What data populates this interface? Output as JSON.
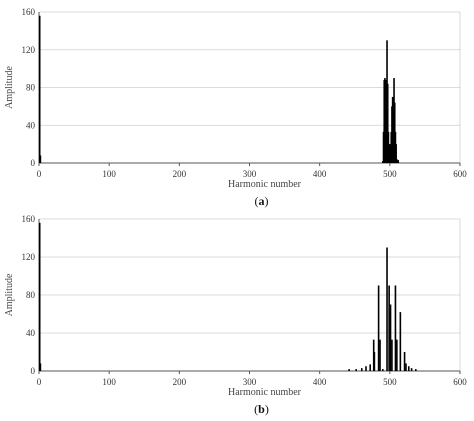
{
  "chart_data": [
    {
      "type": "bar",
      "panel_label": "b",
      "caption_prefix": "(",
      "caption_suffix": ")",
      "xlabel": "Harmonic number",
      "ylabel": "Amplitude",
      "xlim": [
        0,
        600
      ],
      "ylim": [
        0,
        160
      ],
      "xticks": [
        0,
        100,
        200,
        300,
        400,
        500,
        600
      ],
      "yticks": [
        0,
        40,
        80,
        120,
        160
      ],
      "grid": "horizontal",
      "bar_color": "#000000",
      "points": [
        {
          "x": 1,
          "y": 156
        },
        {
          "x": 2,
          "y": 8
        },
        {
          "x": 490,
          "y": 2
        },
        {
          "x": 491,
          "y": 33
        },
        {
          "x": 492,
          "y": 88
        },
        {
          "x": 493,
          "y": 90
        },
        {
          "x": 494,
          "y": 33
        },
        {
          "x": 495,
          "y": 88
        },
        {
          "x": 496,
          "y": 130
        },
        {
          "x": 497,
          "y": 84
        },
        {
          "x": 498,
          "y": 33
        },
        {
          "x": 499,
          "y": 20
        },
        {
          "x": 500,
          "y": 20
        },
        {
          "x": 501,
          "y": 8
        },
        {
          "x": 502,
          "y": 33
        },
        {
          "x": 503,
          "y": 60
        },
        {
          "x": 504,
          "y": 70
        },
        {
          "x": 505,
          "y": 55
        },
        {
          "x": 506,
          "y": 90
        },
        {
          "x": 507,
          "y": 64
        },
        {
          "x": 508,
          "y": 33
        },
        {
          "x": 509,
          "y": 20
        },
        {
          "x": 510,
          "y": 4
        },
        {
          "x": 512,
          "y": 3
        }
      ]
    },
    {
      "type": "bar",
      "panel_label": "b",
      "caption_prefix": "(",
      "caption_suffix": ")",
      "xlabel": "Harmonic number",
      "ylabel": "Amplitude",
      "xlim": [
        0,
        600
      ],
      "ylim": [
        0,
        160
      ],
      "xticks": [
        0,
        100,
        200,
        300,
        400,
        500,
        600
      ],
      "yticks": [
        0,
        40,
        80,
        120,
        160
      ],
      "grid": "horizontal",
      "bar_color": "#000000",
      "points": [
        {
          "x": 1,
          "y": 156
        },
        {
          "x": 2,
          "y": 8
        },
        {
          "x": 442,
          "y": 2
        },
        {
          "x": 452,
          "y": 2
        },
        {
          "x": 460,
          "y": 3
        },
        {
          "x": 466,
          "y": 5
        },
        {
          "x": 472,
          "y": 7
        },
        {
          "x": 477,
          "y": 33
        },
        {
          "x": 478,
          "y": 20
        },
        {
          "x": 484,
          "y": 90
        },
        {
          "x": 486,
          "y": 33
        },
        {
          "x": 490,
          "y": 2
        },
        {
          "x": 496,
          "y": 130
        },
        {
          "x": 499,
          "y": 90
        },
        {
          "x": 501,
          "y": 70
        },
        {
          "x": 503,
          "y": 33
        },
        {
          "x": 508,
          "y": 90
        },
        {
          "x": 510,
          "y": 33
        },
        {
          "x": 515,
          "y": 62
        },
        {
          "x": 521,
          "y": 20
        },
        {
          "x": 523,
          "y": 8
        },
        {
          "x": 527,
          "y": 5
        },
        {
          "x": 531,
          "y": 3
        },
        {
          "x": 537,
          "y": 2
        }
      ]
    }
  ]
}
